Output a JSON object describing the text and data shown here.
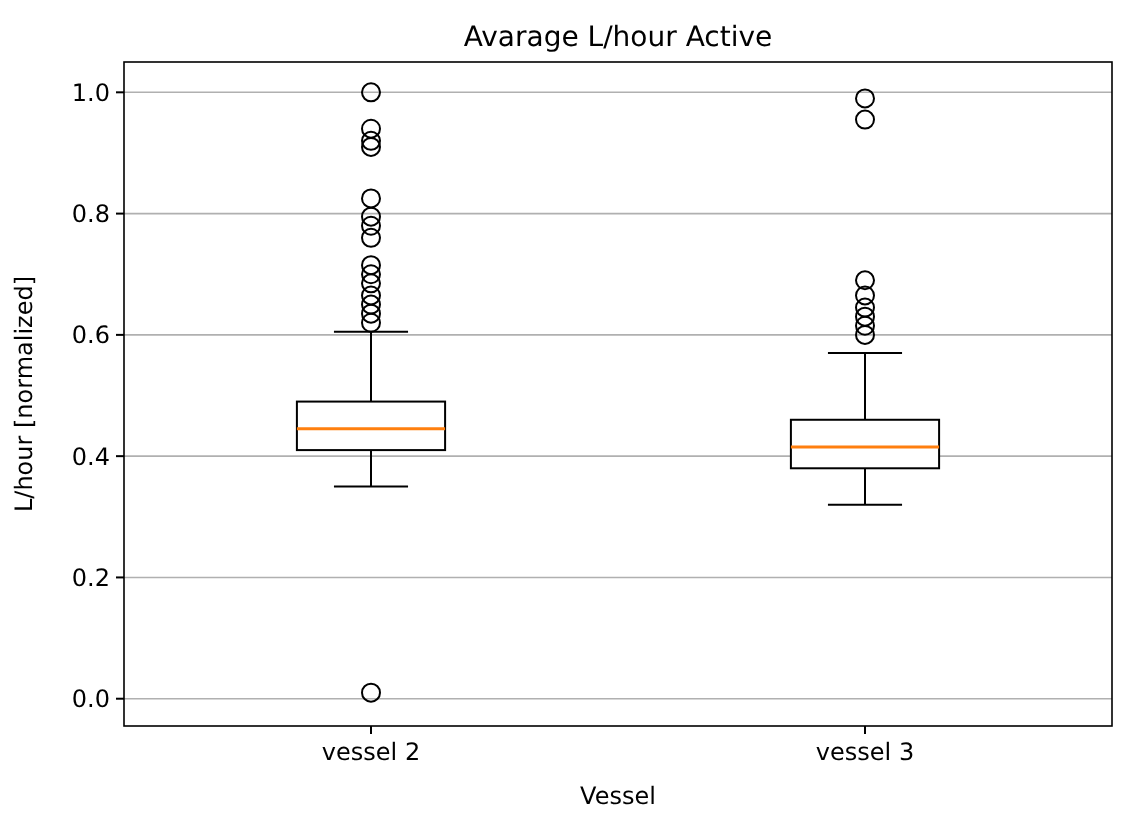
{
  "chart_data": {
    "type": "box",
    "title": "Avarage L/hour Active",
    "xlabel": "Vessel",
    "ylabel": "L/hour [normalized]",
    "categories": [
      "vessel 2",
      "vessel 3"
    ],
    "boxes": [
      {
        "low": 0.35,
        "q1": 0.41,
        "median": 0.445,
        "q3": 0.49,
        "high": 0.605,
        "outliers": [
          1.0,
          0.94,
          0.92,
          0.91,
          0.825,
          0.795,
          0.78,
          0.76,
          0.715,
          0.7,
          0.685,
          0.665,
          0.65,
          0.635,
          0.62,
          0.01
        ]
      },
      {
        "low": 0.32,
        "q1": 0.38,
        "median": 0.415,
        "q3": 0.46,
        "high": 0.57,
        "outliers": [
          0.99,
          0.955,
          0.69,
          0.665,
          0.645,
          0.63,
          0.615,
          0.6
        ]
      }
    ],
    "color": "#000000",
    "ylim": [
      -0.045,
      1.05
    ],
    "yticks": [
      {
        "value": 0,
        "label": "0.0"
      },
      0.2,
      0.4,
      0.6,
      0.8,
      {
        "value": 1,
        "label": "1.0"
      }
    ],
    "grid": "y",
    "marker": "circle"
  }
}
